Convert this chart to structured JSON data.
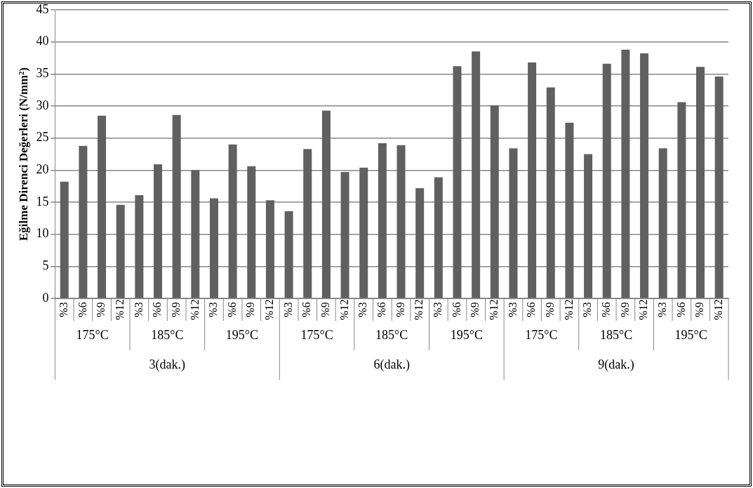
{
  "chart_data": {
    "type": "bar",
    "ylabel": "Eğilme Direnci Değerleri (N/mm²)",
    "categories": [
      "%3",
      "%6",
      "%9",
      "%12",
      "%3",
      "%6",
      "%9",
      "%12",
      "%3",
      "%6",
      "%9",
      "%12",
      "%3",
      "%6",
      "%9",
      "%12",
      "%3",
      "%6",
      "%9",
      "%12",
      "%3",
      "%6",
      "%9",
      "%12",
      "%3",
      "%6",
      "%9",
      "%12",
      "%3",
      "%6",
      "%9",
      "%12",
      "%3",
      "%6",
      "%9",
      "%12"
    ],
    "values": [
      18.2,
      23.8,
      28.5,
      14.6,
      16.1,
      20.9,
      28.6,
      20.0,
      15.6,
      24.0,
      20.6,
      15.3,
      13.6,
      23.3,
      29.3,
      19.7,
      20.4,
      24.2,
      23.9,
      17.2,
      18.9,
      36.2,
      38.5,
      30.1,
      23.4,
      36.8,
      32.9,
      27.4,
      22.5,
      36.6,
      38.8,
      38.2,
      23.4,
      30.6,
      36.1,
      34.6
    ],
    "color": "#606060",
    "ylim": [
      0,
      45
    ],
    "yticks": [
      0,
      5,
      10,
      15,
      20,
      25,
      30,
      35,
      40,
      45
    ],
    "grid": "y",
    "annotations": [
      "175°C",
      "185°C",
      "195°C",
      "175°C",
      "185°C",
      "195°C",
      "175°C",
      "185°C",
      "195°C",
      "3(dak.)",
      "6(dak.)",
      "9(dak.)"
    ]
  }
}
